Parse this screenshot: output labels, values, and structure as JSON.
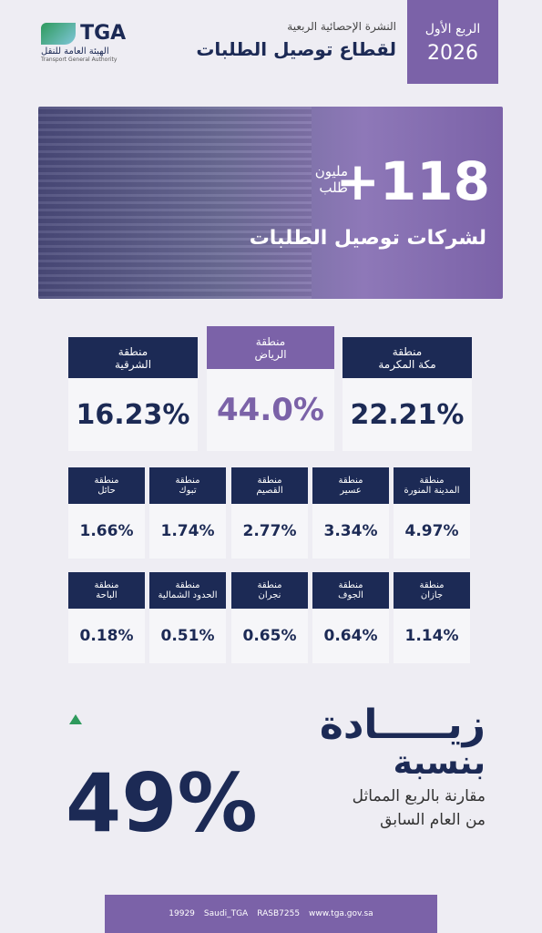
{
  "header": {
    "logo": "TGA",
    "logo_ar": "الهيئة العامة للنقل",
    "logo_en": "Transport General Authority",
    "subtitle": "النشرة الإحصائية الربعية",
    "title": "لقطاع توصيل الطلبات",
    "quarter": "الربع الأول",
    "year": "2026"
  },
  "hero": {
    "number": "+118",
    "unit1": "مليون",
    "unit2": "طلب",
    "caption": "لشركات توصيل الطلبات"
  },
  "regions": {
    "top": [
      {
        "prefix": "منطقة",
        "name": "مكة المكرمة",
        "value": "22.21%"
      },
      {
        "prefix": "منطقة",
        "name": "الرياض",
        "value": "44.0%"
      },
      {
        "prefix": "منطقة",
        "name": "الشرقية",
        "value": "16.23%"
      }
    ],
    "row2": [
      {
        "prefix": "منطقة",
        "name": "المدينة المنورة",
        "value": "4.97%"
      },
      {
        "prefix": "منطقة",
        "name": "عسير",
        "value": "3.34%"
      },
      {
        "prefix": "منطقة",
        "name": "القصيم",
        "value": "2.77%"
      },
      {
        "prefix": "منطقة",
        "name": "تبوك",
        "value": "1.74%"
      },
      {
        "prefix": "منطقة",
        "name": "حائل",
        "value": "1.66%"
      }
    ],
    "row3": [
      {
        "prefix": "منطقة",
        "name": "جازان",
        "value": "1.14%"
      },
      {
        "prefix": "منطقة",
        "name": "الجوف",
        "value": "0.64%"
      },
      {
        "prefix": "منطقة",
        "name": "نجران",
        "value": "0.65%"
      },
      {
        "prefix": "منطقة",
        "name": "الحدود الشمالية",
        "value": "0.51%"
      },
      {
        "prefix": "منطقة",
        "name": "الباحة",
        "value": "0.18%"
      }
    ]
  },
  "increase": {
    "word": "زيـــــادة",
    "by": "بنسبة",
    "value": "49%",
    "line1": "مقارنة بالربع المماثل",
    "line2": "من العام السابق"
  },
  "footer": {
    "phone": "19929",
    "social": "Saudi_TGA",
    "code": "RASB7255",
    "site": "www.tga.gov.sa"
  }
}
